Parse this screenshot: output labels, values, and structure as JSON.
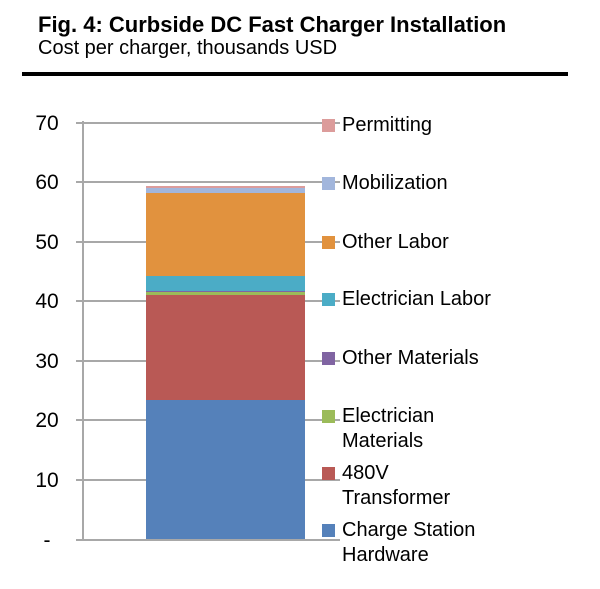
{
  "header": {
    "title": "Fig. 4: Curbside DC Fast Charger Installation",
    "subtitle": "Cost per charger, thousands USD"
  },
  "chart_data": {
    "type": "bar",
    "stacked": true,
    "title": "Fig. 4: Curbside DC Fast Charger Installation",
    "subtitle": "Cost per charger, thousands USD",
    "ylabel": "Cost per charger, thousands USD",
    "xlabel": "",
    "categories": [
      "Cost per charger"
    ],
    "ylim": [
      0,
      70
    ],
    "grid": true,
    "legend_position": "right",
    "total_estimate": 59.4,
    "yticks": [
      {
        "value": 70,
        "label": "70"
      },
      {
        "value": 60,
        "label": "60"
      },
      {
        "value": 50,
        "label": "50"
      },
      {
        "value": 40,
        "label": "40"
      },
      {
        "value": 30,
        "label": "30"
      },
      {
        "value": 20,
        "label": "20"
      },
      {
        "value": 10,
        "label": "10"
      },
      {
        "value": 0,
        "label": "-"
      }
    ],
    "series": [
      {
        "name": "Charge Station Hardware",
        "value": 23.4,
        "color": "#5581BA"
      },
      {
        "name": "480V Transformer",
        "value": 17.7,
        "color": "#B95955"
      },
      {
        "name": "Electrician Materials",
        "value": 0.4,
        "color": "#9BBB59"
      },
      {
        "name": "Other Materials",
        "value": 0.3,
        "color": "#8064A2"
      },
      {
        "name": "Electrician Labor",
        "value": 2.4,
        "color": "#4BACC6"
      },
      {
        "name": "Other Labor",
        "value": 14.0,
        "color": "#E1923E"
      },
      {
        "name": "Mobilization",
        "value": 0.9,
        "color": "#A2B6DC"
      },
      {
        "name": "Permitting",
        "value": 0.3,
        "color": "#DC9C9B"
      }
    ],
    "legend": [
      {
        "name": "Permitting",
        "color": "#DC9C9B",
        "lines": [
          "Permitting"
        ]
      },
      {
        "name": "Mobilization",
        "color": "#A2B6DC",
        "lines": [
          "Mobilization"
        ]
      },
      {
        "name": "Other Labor",
        "color": "#E1923E",
        "lines": [
          "Other Labor"
        ]
      },
      {
        "name": "Electrician Labor",
        "color": "#4BACC6",
        "lines": [
          "Electrician Labor"
        ]
      },
      {
        "name": "Other Materials",
        "color": "#8064A2",
        "lines": [
          "Other Materials"
        ]
      },
      {
        "name": "Electrician Materials",
        "color": "#9BBB59",
        "lines": [
          "Electrician",
          "Materials"
        ]
      },
      {
        "name": "480V Transformer",
        "color": "#B95955",
        "lines": [
          "480V",
          "Transformer"
        ]
      },
      {
        "name": "Charge Station Hardware",
        "color": "#5581BA",
        "lines": [
          "Charge Station",
          "Hardware"
        ]
      }
    ]
  }
}
